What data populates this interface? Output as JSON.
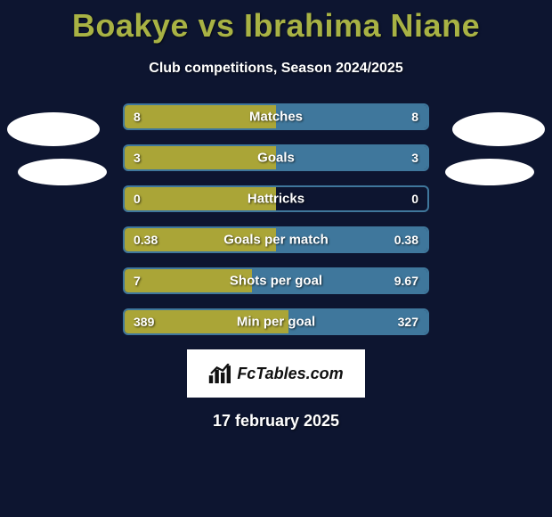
{
  "title": "Boakye vs Ibrahima Niane",
  "subtitle": "Club competitions, Season 2024/2025",
  "date": "17 february 2025",
  "colors": {
    "player1": "#aaa537",
    "player2": "#3f779c",
    "background": "#0d1530",
    "title_color": "#a8b244",
    "text_color": "#ffffff"
  },
  "title_fontsize": 36,
  "subtitle_fontsize": 16,
  "rows": [
    {
      "label": "Matches",
      "left": "8",
      "right": "8",
      "left_pct": 50,
      "right_pct": 50,
      "higher_is_better": true
    },
    {
      "label": "Goals",
      "left": "3",
      "right": "3",
      "left_pct": 50,
      "right_pct": 50,
      "higher_is_better": true
    },
    {
      "label": "Hattricks",
      "left": "0",
      "right": "0",
      "left_pct": 50,
      "right_pct": 0,
      "higher_is_better": true
    },
    {
      "label": "Goals per match",
      "left": "0.38",
      "right": "0.38",
      "left_pct": 50,
      "right_pct": 50,
      "higher_is_better": true
    },
    {
      "label": "Shots per goal",
      "left": "7",
      "right": "9.67",
      "left_pct": 42,
      "right_pct": 58,
      "higher_is_better": false
    },
    {
      "label": "Min per goal",
      "left": "389",
      "right": "327",
      "left_pct": 54,
      "right_pct": 46,
      "higher_is_better": false
    }
  ],
  "logo_text": "FcTables.com"
}
